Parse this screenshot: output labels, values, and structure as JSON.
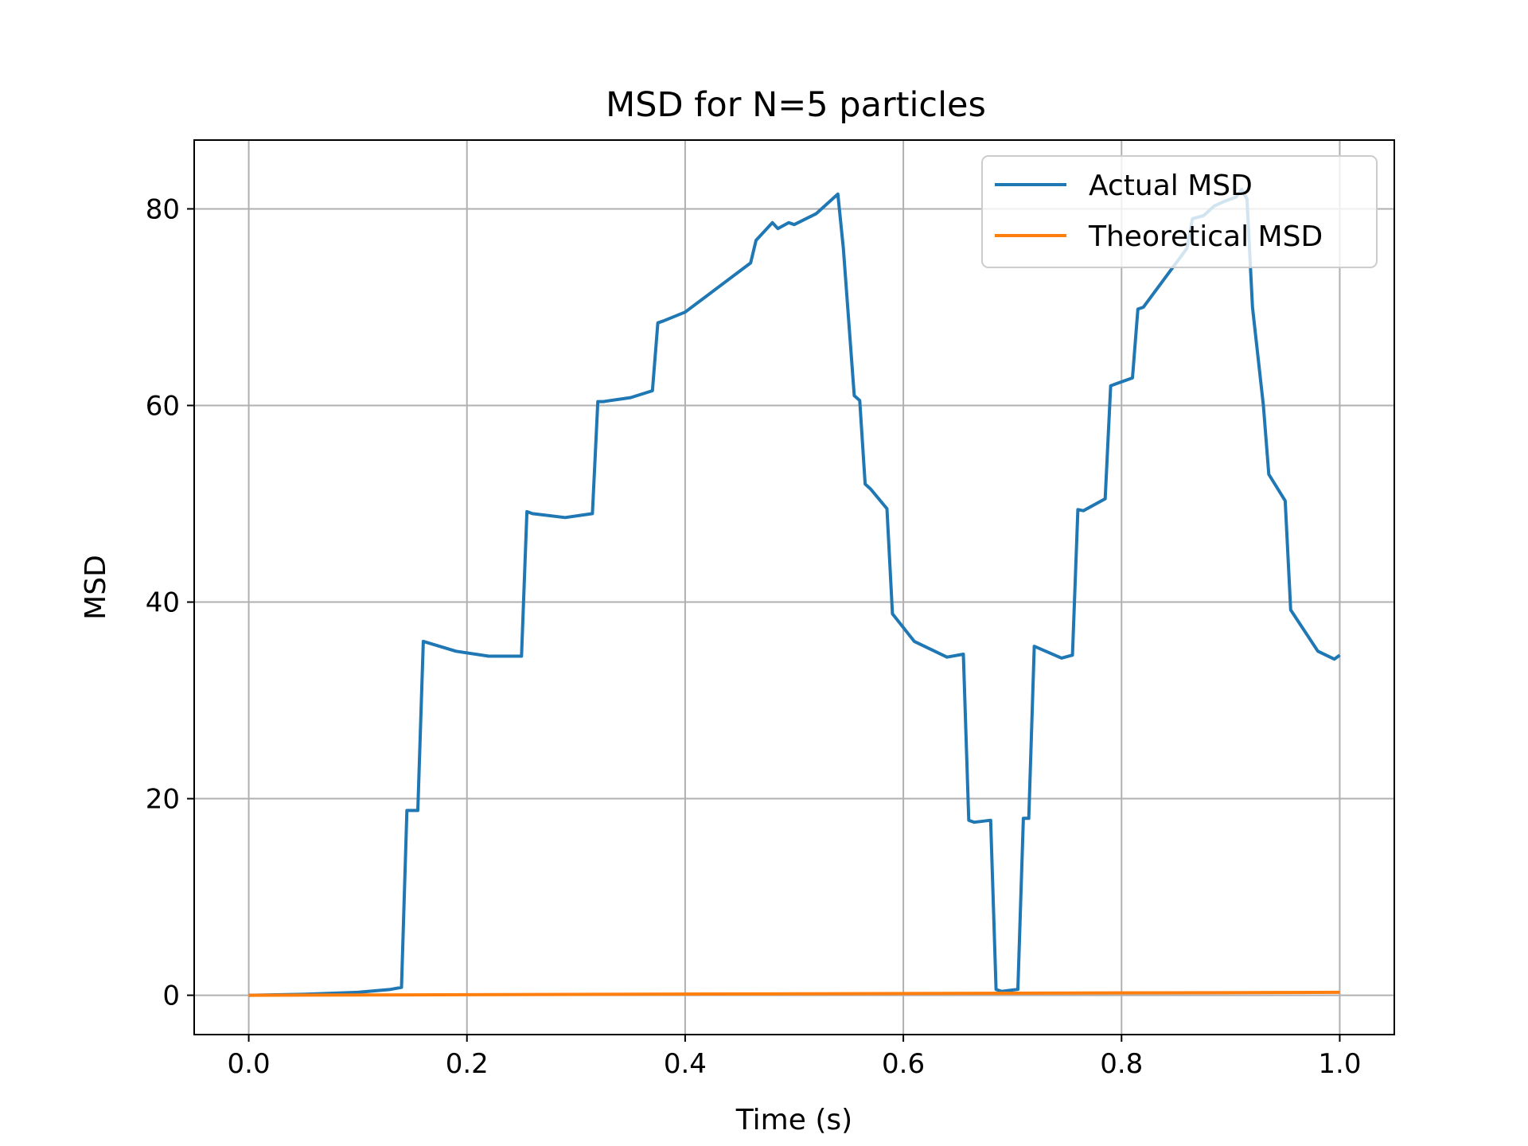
{
  "chart_data": {
    "type": "line",
    "title": "MSD for N=5 particles",
    "xlabel": "Time (s)",
    "ylabel": "MSD",
    "xlim": [
      -0.05,
      1.05
    ],
    "ylim": [
      -4,
      87
    ],
    "xticks": [
      0.0,
      0.2,
      0.4,
      0.6,
      0.8,
      1.0
    ],
    "xtick_labels": [
      "0.0",
      "0.2",
      "0.4",
      "0.6",
      "0.8",
      "1.0"
    ],
    "yticks": [
      0,
      20,
      40,
      60,
      80
    ],
    "ytick_labels": [
      "0",
      "20",
      "40",
      "60",
      "80"
    ],
    "grid": true,
    "legend_position": "top-right",
    "series": [
      {
        "name": "Actual MSD",
        "color": "#1f77b4",
        "x": [
          0.0,
          0.05,
          0.1,
          0.13,
          0.14,
          0.145,
          0.155,
          0.16,
          0.19,
          0.22,
          0.25,
          0.255,
          0.26,
          0.29,
          0.315,
          0.32,
          0.325,
          0.35,
          0.37,
          0.375,
          0.38,
          0.4,
          0.43,
          0.46,
          0.465,
          0.475,
          0.48,
          0.485,
          0.495,
          0.5,
          0.52,
          0.54,
          0.545,
          0.555,
          0.56,
          0.565,
          0.57,
          0.585,
          0.59,
          0.61,
          0.64,
          0.655,
          0.66,
          0.665,
          0.68,
          0.685,
          0.69,
          0.705,
          0.71,
          0.715,
          0.72,
          0.745,
          0.755,
          0.76,
          0.765,
          0.785,
          0.79,
          0.795,
          0.81,
          0.815,
          0.82,
          0.86,
          0.865,
          0.875,
          0.885,
          0.895,
          0.905,
          0.91,
          0.915,
          0.92,
          0.93,
          0.935,
          0.95,
          0.955,
          0.98,
          0.995,
          1.0
        ],
        "y": [
          0,
          0.1,
          0.3,
          0.6,
          0.8,
          18.8,
          18.8,
          36,
          35,
          34.5,
          34.5,
          49.2,
          49,
          48.6,
          49,
          60.4,
          60.4,
          60.8,
          61.5,
          68.4,
          68.6,
          69.5,
          72,
          74.5,
          76.8,
          78,
          78.6,
          78,
          78.6,
          78.4,
          79.5,
          81.5,
          76,
          61,
          60.5,
          52,
          51.5,
          49.5,
          38.8,
          36,
          34.4,
          34.7,
          17.8,
          17.6,
          17.8,
          0.6,
          0.4,
          0.6,
          18,
          18,
          35.5,
          34.3,
          34.6,
          49.4,
          49.3,
          50.5,
          62,
          62.2,
          62.8,
          69.8,
          70,
          76,
          79,
          79.3,
          80.3,
          80.8,
          81.2,
          82,
          81,
          70,
          60,
          53,
          50.3,
          39.2,
          35,
          34.2,
          34.6
        ]
      },
      {
        "name": "Theoretical MSD",
        "color": "#ff7f0e",
        "x": [
          0.0,
          1.0
        ],
        "y": [
          0.0,
          0.3
        ]
      }
    ]
  }
}
